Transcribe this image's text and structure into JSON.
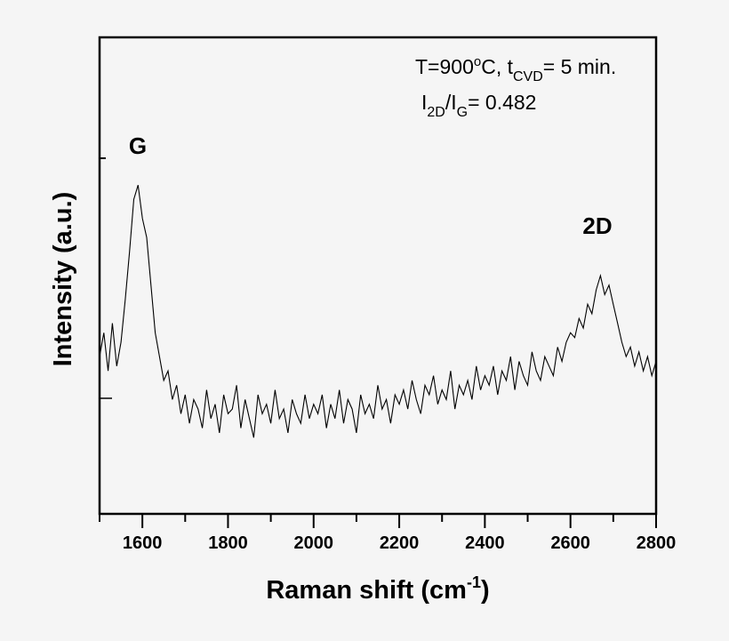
{
  "chart_data": {
    "type": "line",
    "title": "",
    "xlabel": "Raman shift (cm",
    "xlabel_sup": "-1",
    "xlabel_end": ")",
    "ylabel": "Intensity (a.u.)",
    "xlim": [
      1500,
      2800
    ],
    "ylim": [
      0,
      100
    ],
    "xticks": [
      1600,
      1800,
      2000,
      2200,
      2400,
      2600,
      2800
    ],
    "xminor_step": 100,
    "yticks_labeled": false,
    "grid": false,
    "line_color": "#000000",
    "background": "#f5f5f5",
    "annotations": {
      "peak_g": "G",
      "peak_2d": "2D",
      "line1_a": "T=900",
      "line1_sup": "o",
      "line1_b": "C, t",
      "line1_sub": "CVD",
      "line1_c": "= 5 min.",
      "line2_a": "I",
      "line2_sub1": "2D",
      "line2_b": "/I",
      "line2_sub2": "G",
      "line2_c": "= 0.482"
    },
    "series": [
      {
        "x_start": 1500,
        "x_step": 10,
        "values": [
          33,
          38,
          30,
          40,
          31,
          36,
          45,
          55,
          66,
          69,
          62,
          58,
          48,
          38,
          33,
          28,
          30,
          24,
          27,
          21,
          25,
          19,
          24,
          22,
          18,
          26,
          20,
          23,
          17,
          25,
          21,
          22,
          27,
          18,
          24,
          20,
          16,
          25,
          21,
          23,
          19,
          26,
          20,
          22,
          17,
          24,
          21,
          19,
          25,
          20,
          23,
          21,
          25,
          18,
          23,
          20,
          26,
          19,
          24,
          22,
          17,
          25,
          21,
          23,
          20,
          27,
          22,
          24,
          19,
          25,
          23,
          26,
          22,
          28,
          24,
          21,
          27,
          25,
          29,
          23,
          26,
          24,
          30,
          22,
          27,
          25,
          28,
          24,
          31,
          26,
          29,
          27,
          31,
          25,
          30,
          28,
          33,
          26,
          32,
          29,
          27,
          34,
          30,
          28,
          33,
          31,
          29,
          35,
          32,
          36,
          38,
          37,
          41,
          39,
          44,
          42,
          47,
          50,
          46,
          48,
          44,
          40,
          36,
          33,
          35,
          31,
          34,
          30,
          33,
          29,
          32
        ]
      }
    ]
  }
}
